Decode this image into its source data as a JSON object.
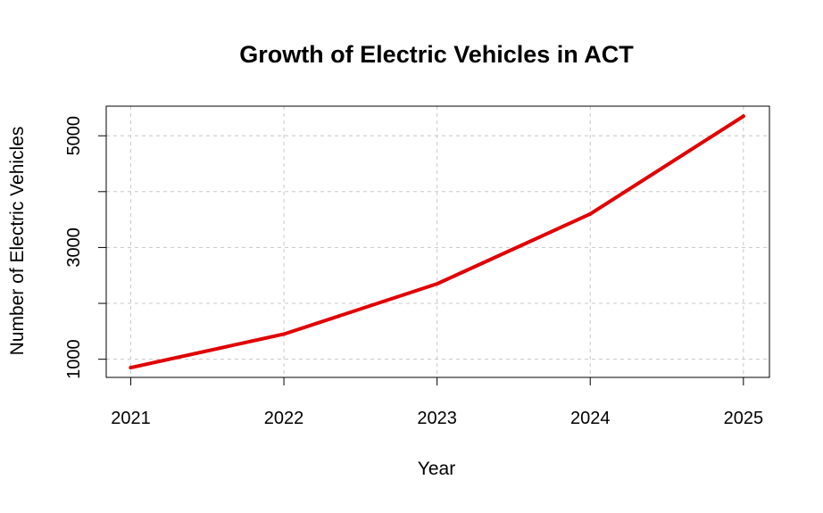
{
  "chart_data": {
    "type": "line",
    "title": "Growth of Electric Vehicles in ACT",
    "xlabel": "Year",
    "ylabel": "Number of Electric Vehicles",
    "x": [
      2021,
      2022,
      2023,
      2024,
      2025
    ],
    "x_tick_labels": [
      "2021",
      "2022",
      "2023",
      "2024",
      "2025"
    ],
    "y_tick_values": [
      1000,
      3000,
      5000
    ],
    "y_tick_labels": [
      "1000",
      "3000",
      "5000"
    ],
    "y_grid_values": [
      1000,
      2000,
      3000,
      4000,
      5000
    ],
    "series": [
      {
        "values": [
          850,
          1450,
          2350,
          3600,
          5350
        ],
        "color": "#e00000"
      }
    ],
    "xlim": [
      2020.84,
      2025.17
    ],
    "ylim": [
      675,
      5530
    ],
    "grid": true,
    "grid_color": "#c8c8c8",
    "legend": "none"
  }
}
